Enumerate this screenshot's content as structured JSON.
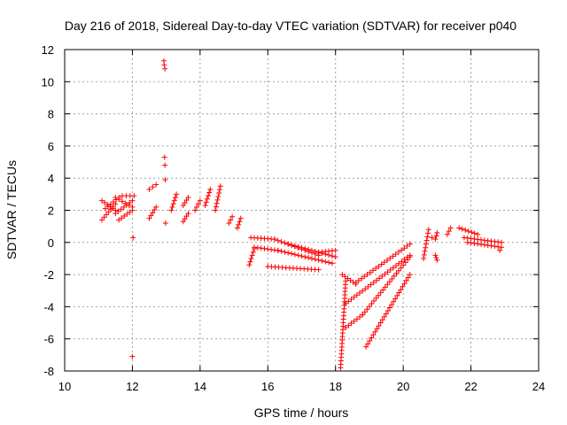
{
  "chart_data": {
    "type": "scatter",
    "title": "Day 216 of 2018, Sidereal Day-to-day VTEC variation (SDTVAR) for receiver p040",
    "xlabel": "GPS time / hours",
    "ylabel": "SDTVAR / TECUs",
    "xlim": [
      10,
      24
    ],
    "ylim": [
      -8,
      12
    ],
    "x_ticks": [
      "10",
      "12",
      "14",
      "16",
      "18",
      "20",
      "22",
      "24"
    ],
    "y_ticks": [
      "-8",
      "-6",
      "-4",
      "-2",
      "0",
      "2",
      "4",
      "6",
      "8",
      "10",
      "12"
    ],
    "grid": true,
    "marker": "+",
    "series_color": "#ff0000",
    "segments": [
      {
        "x": [
          11.1,
          11.5
        ],
        "y": [
          2.6,
          2.0
        ]
      },
      {
        "x": [
          11.1,
          11.5
        ],
        "y": [
          1.4,
          2.4
        ]
      },
      {
        "x": [
          11.2,
          11.6
        ],
        "y": [
          2.1,
          2.8
        ]
      },
      {
        "x": [
          11.5,
          12.0
        ],
        "y": [
          2.8,
          2.2
        ]
      },
      {
        "x": [
          11.5,
          12.0
        ],
        "y": [
          1.8,
          2.6
        ]
      },
      {
        "x": [
          11.6,
          12.0
        ],
        "y": [
          1.4,
          2.0
        ]
      },
      {
        "x": [
          11.7,
          12.05
        ],
        "y": [
          2.9,
          2.9
        ]
      },
      {
        "x": [
          12.5,
          12.7
        ],
        "y": [
          1.5,
          2.2
        ]
      },
      {
        "x": [
          12.5,
          12.7
        ],
        "y": [
          3.3,
          3.6
        ]
      },
      {
        "x": [
          13.15,
          13.3
        ],
        "y": [
          2.0,
          3.0
        ]
      },
      {
        "x": [
          13.5,
          13.65
        ],
        "y": [
          1.3,
          1.8
        ]
      },
      {
        "x": [
          13.5,
          13.65
        ],
        "y": [
          2.3,
          2.8
        ]
      },
      {
        "x": [
          13.85,
          14.0
        ],
        "y": [
          2.0,
          2.6
        ]
      },
      {
        "x": [
          14.15,
          14.3
        ],
        "y": [
          2.3,
          3.3
        ]
      },
      {
        "x": [
          14.45,
          14.6
        ],
        "y": [
          2.0,
          3.5
        ]
      },
      {
        "x": [
          14.85,
          14.95
        ],
        "y": [
          1.2,
          1.6
        ]
      },
      {
        "x": [
          15.1,
          15.2
        ],
        "y": [
          0.9,
          1.5
        ]
      },
      {
        "x": [
          15.45,
          15.6
        ],
        "y": [
          -1.4,
          -0.4
        ]
      },
      {
        "x": [
          15.5,
          16.2
        ],
        "y": [
          0.3,
          0.2
        ]
      },
      {
        "x": [
          15.6,
          16.3
        ],
        "y": [
          -0.3,
          -0.5
        ]
      },
      {
        "x": [
          16.0,
          17.5
        ],
        "y": [
          -1.5,
          -1.7
        ]
      },
      {
        "x": [
          16.2,
          17.5
        ],
        "y": [
          0.2,
          -0.8
        ]
      },
      {
        "x": [
          16.3,
          17.9
        ],
        "y": [
          -0.5,
          -1.3
        ]
      },
      {
        "x": [
          16.6,
          18.0
        ],
        "y": [
          -0.1,
          -0.9
        ]
      },
      {
        "x": [
          17.5,
          18.0
        ],
        "y": [
          -0.6,
          -0.5
        ]
      },
      {
        "x": [
          18.15,
          18.3
        ],
        "y": [
          -7.8,
          -2.4
        ]
      },
      {
        "x": [
          18.2,
          18.6
        ],
        "y": [
          -2.0,
          -2.6
        ]
      },
      {
        "x": [
          18.6,
          20.2
        ],
        "y": [
          -2.5,
          -0.1
        ]
      },
      {
        "x": [
          18.3,
          20.2
        ],
        "y": [
          -3.8,
          -0.8
        ]
      },
      {
        "x": [
          18.3,
          18.8
        ],
        "y": [
          -5.3,
          -4.5
        ]
      },
      {
        "x": [
          18.8,
          20.2
        ],
        "y": [
          -4.5,
          -0.9
        ]
      },
      {
        "x": [
          18.9,
          20.2
        ],
        "y": [
          -6.5,
          -2.0
        ]
      },
      {
        "x": [
          20.6,
          20.75
        ],
        "y": [
          -1.0,
          0.8
        ]
      },
      {
        "x": [
          20.95,
          21.0
        ],
        "y": [
          0.2,
          0.6
        ]
      },
      {
        "x": [
          20.95,
          21.0
        ],
        "y": [
          -0.8,
          -1.1
        ]
      },
      {
        "x": [
          21.3,
          21.4
        ],
        "y": [
          0.5,
          0.9
        ]
      },
      {
        "x": [
          21.65,
          22.2
        ],
        "y": [
          0.9,
          0.5
        ]
      },
      {
        "x": [
          21.8,
          22.9
        ],
        "y": [
          0.3,
          0.0
        ]
      },
      {
        "x": [
          21.9,
          22.9
        ],
        "y": [
          0.0,
          -0.3
        ]
      }
    ],
    "outliers": [
      {
        "x": 12.0,
        "y": -7.1
      },
      {
        "x": 12.02,
        "y": 0.3
      },
      {
        "x": 12.93,
        "y": 11.3
      },
      {
        "x": 12.94,
        "y": 11.05
      },
      {
        "x": 12.96,
        "y": 10.8
      },
      {
        "x": 12.95,
        "y": 5.3
      },
      {
        "x": 12.96,
        "y": 4.8
      },
      {
        "x": 12.97,
        "y": 3.9
      },
      {
        "x": 12.98,
        "y": 1.2
      },
      {
        "x": 20.85,
        "y": 0.3
      },
      {
        "x": 22.85,
        "y": -0.5
      }
    ]
  }
}
